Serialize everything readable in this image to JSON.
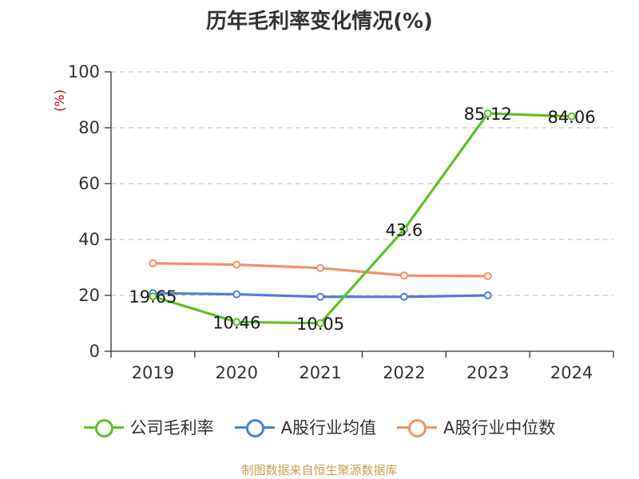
{
  "title": "历年毛利率变化情况(%)",
  "source": "制图数据来自恒生聚源数据库",
  "colors": {
    "axis": "#333333",
    "grid": "#cccccc",
    "ylabel": "#cc0000"
  },
  "chart_data": {
    "type": "line",
    "ylabel": "(%)",
    "ylim": [
      0,
      100
    ],
    "yticks": [
      0,
      20,
      40,
      60,
      80,
      100
    ],
    "categories": [
      "2019",
      "2020",
      "2021",
      "2022",
      "2023",
      "2024"
    ],
    "grid": true,
    "legend_position": "bottom",
    "series": [
      {
        "name": "公司毛利率",
        "color": "#5cc327",
        "values": [
          19.65,
          10.46,
          10.05,
          43.6,
          85.12,
          84.06
        ],
        "labels": [
          "19.65",
          "10.46",
          "10.05",
          "43.6",
          "85.12",
          "84.06"
        ]
      },
      {
        "name": "A股行业均值",
        "color": "#4d80d9",
        "values": [
          20.8,
          20.4,
          19.5,
          19.5,
          20.0,
          null
        ]
      },
      {
        "name": "A股行业中位数",
        "color": "#f49064",
        "values": [
          31.5,
          31.0,
          29.8,
          27.1,
          26.9,
          null
        ]
      }
    ]
  }
}
